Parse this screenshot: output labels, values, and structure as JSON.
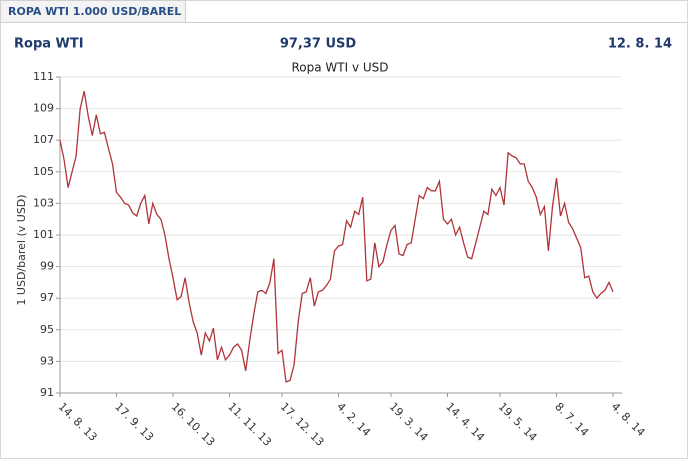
{
  "header": {
    "tab": "ROPA WTI 1.000 USD/BAREL",
    "name": "Ropa WTI",
    "price": "97,37 USD",
    "date": "12. 8. 14"
  },
  "chart_data": {
    "type": "line",
    "title": "Ropa WTI v USD",
    "y_label": "1 USD/barel (v USD)",
    "categories": [
      "14. 8. 13",
      null,
      null,
      null,
      null,
      null,
      null,
      null,
      null,
      null,
      null,
      null,
      null,
      null,
      "17. 9. 13",
      null,
      null,
      null,
      null,
      null,
      null,
      null,
      null,
      null,
      null,
      null,
      null,
      null,
      "16. 10. 13",
      null,
      null,
      null,
      null,
      null,
      null,
      null,
      null,
      null,
      null,
      null,
      null,
      null,
      "11. 11. 13",
      null,
      null,
      null,
      null,
      null,
      null,
      null,
      null,
      null,
      null,
      null,
      null,
      "17. 12. 13",
      null,
      null,
      null,
      null,
      null,
      null,
      null,
      null,
      null,
      null,
      null,
      null,
      null,
      "4. 2. 14",
      null,
      null,
      null,
      null,
      null,
      null,
      null,
      null,
      null,
      null,
      null,
      null,
      "19. 3. 14",
      null,
      null,
      null,
      null,
      null,
      null,
      null,
      null,
      null,
      null,
      null,
      null,
      null,
      "14. 4. 14",
      null,
      null,
      null,
      null,
      null,
      null,
      null,
      null,
      null,
      null,
      null,
      null,
      "19. 5. 14",
      null,
      null,
      null,
      null,
      null,
      null,
      null,
      null,
      null,
      null,
      null,
      null,
      null,
      "8. 7. 14",
      null,
      null,
      null,
      null,
      null,
      null,
      null,
      null,
      null,
      null,
      null,
      null,
      null,
      "4. 8. 14"
    ],
    "values": [
      107,
      105.8,
      104,
      105,
      106,
      109,
      110.1,
      108.5,
      107.3,
      108.6,
      107.4,
      107.5,
      106.5,
      105.5,
      103.7,
      103.4,
      103,
      102.9,
      102.4,
      102.2,
      103,
      103.5,
      101.7,
      103,
      102.3,
      102,
      101,
      99.5,
      98.3,
      96.9,
      97.1,
      98.3,
      96.7,
      95.5,
      94.8,
      93.4,
      94.8,
      94.3,
      95.1,
      93.1,
      93.9,
      93.1,
      93.4,
      93.9,
      94.1,
      93.7,
      92.4,
      94.3,
      96,
      97.4,
      97.5,
      97.3,
      98,
      99.5,
      93.5,
      93.7,
      91.7,
      91.8,
      92.8,
      95.5,
      97.3,
      97.4,
      98.3,
      96.5,
      97.4,
      97.5,
      97.8,
      98.2,
      100,
      100.3,
      100.4,
      101.9,
      101.5,
      102.5,
      102.3,
      103.4,
      98.1,
      98.2,
      100.5,
      99,
      99.3,
      100.4,
      101.3,
      101.6,
      99.8,
      99.7,
      100.4,
      100.5,
      102,
      103.5,
      103.3,
      104,
      103.8,
      103.8,
      104.4,
      102,
      101.7,
      102,
      101,
      101.5,
      100.5,
      99.6,
      99.5,
      100.5,
      101.5,
      102.5,
      102.3,
      103.9,
      103.5,
      104,
      102.9,
      106.2,
      106,
      105.9,
      105.5,
      105.5,
      104.4,
      104,
      103.4,
      102.3,
      102.8,
      100,
      102.8,
      104.6,
      102.2,
      103,
      101.8,
      101.4,
      100.8,
      100.2,
      98.3,
      98.4,
      97.4,
      97,
      97.3,
      97.5,
      98,
      97.4
    ],
    "color": "#b0343a",
    "ylim": [
      91,
      111
    ],
    "yticks": [
      91,
      93,
      95,
      97,
      99,
      101,
      103,
      105,
      107,
      109,
      111
    ],
    "grid": true
  }
}
